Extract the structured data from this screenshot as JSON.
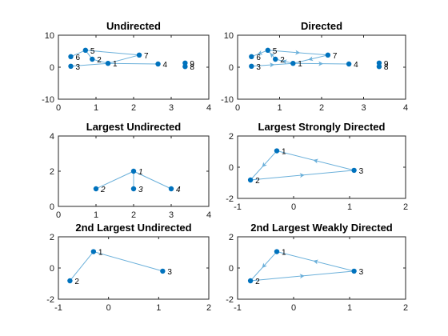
{
  "colors": {
    "node": "#0072BD",
    "edge": "#6BB0DA",
    "axis": "#262626",
    "text": "#000000"
  },
  "panels": [
    {
      "title": "Undirected",
      "directed": false,
      "xlim": [
        0,
        4
      ],
      "ylim": [
        -10,
        10
      ],
      "xticks": [
        0,
        1,
        2,
        3,
        4
      ],
      "yticks": [
        -10,
        0,
        10
      ],
      "nodes": [
        {
          "label": "1",
          "x": 1.32,
          "y": 1.2,
          "italic": false
        },
        {
          "label": "2",
          "x": 0.9,
          "y": 2.5,
          "italic": false
        },
        {
          "label": "3",
          "x": 0.33,
          "y": 0.3,
          "italic": false
        },
        {
          "label": "4",
          "x": 2.65,
          "y": 1.0,
          "italic": false
        },
        {
          "label": "5",
          "x": 0.72,
          "y": 5.3,
          "italic": false
        },
        {
          "label": "6",
          "x": 0.33,
          "y": 3.3,
          "italic": false
        },
        {
          "label": "7",
          "x": 2.15,
          "y": 3.8,
          "italic": false
        },
        {
          "label": "8",
          "x": 3.37,
          "y": 0.2,
          "italic": false
        },
        {
          "label": "9",
          "x": 3.37,
          "y": 1.3,
          "italic": false
        }
      ],
      "edges": [
        [
          5,
          7
        ],
        [
          7,
          1
        ],
        [
          1,
          2
        ],
        [
          2,
          5
        ],
        [
          1,
          4
        ],
        [
          1,
          3
        ],
        [
          5,
          6
        ]
      ]
    },
    {
      "title": "Directed",
      "directed": true,
      "xlim": [
        0,
        4
      ],
      "ylim": [
        -10,
        10
      ],
      "xticks": [
        0,
        1,
        2,
        3,
        4
      ],
      "yticks": [
        -10,
        0,
        10
      ],
      "nodes": [
        {
          "label": "1",
          "x": 1.32,
          "y": 1.2,
          "italic": false
        },
        {
          "label": "2",
          "x": 0.9,
          "y": 2.5,
          "italic": false
        },
        {
          "label": "3",
          "x": 0.33,
          "y": 0.3,
          "italic": false
        },
        {
          "label": "4",
          "x": 2.65,
          "y": 1.0,
          "italic": false
        },
        {
          "label": "5",
          "x": 0.72,
          "y": 5.3,
          "italic": false
        },
        {
          "label": "6",
          "x": 0.33,
          "y": 3.3,
          "italic": false
        },
        {
          "label": "7",
          "x": 2.15,
          "y": 3.8,
          "italic": false
        },
        {
          "label": "8",
          "x": 3.37,
          "y": 0.2,
          "italic": false
        },
        {
          "label": "9",
          "x": 3.37,
          "y": 1.3,
          "italic": false
        }
      ],
      "edges": [
        [
          5,
          7
        ],
        [
          7,
          1
        ],
        [
          1,
          2
        ],
        [
          2,
          5
        ],
        [
          1,
          4
        ],
        [
          3,
          1
        ],
        [
          5,
          6
        ],
        [
          9,
          8
        ]
      ]
    },
    {
      "title": "Largest Undirected",
      "directed": false,
      "xlim": [
        0,
        4
      ],
      "ylim": [
        0,
        4
      ],
      "xticks": [
        0,
        1,
        2,
        3,
        4
      ],
      "yticks": [
        0,
        2,
        4
      ],
      "nodes": [
        {
          "label": "1",
          "x": 2.0,
          "y": 2.0,
          "italic": true
        },
        {
          "label": "2",
          "x": 1.0,
          "y": 1.0,
          "italic": true
        },
        {
          "label": "3",
          "x": 2.0,
          "y": 1.0,
          "italic": true
        },
        {
          "label": "4",
          "x": 3.0,
          "y": 1.0,
          "italic": true
        }
      ],
      "edges": [
        [
          1,
          2
        ],
        [
          1,
          3
        ],
        [
          1,
          4
        ]
      ]
    },
    {
      "title": "Largest Strongly Directed",
      "directed": true,
      "xlim": [
        -1,
        2
      ],
      "ylim": [
        -2,
        2
      ],
      "xticks": [
        -1,
        0,
        1,
        2
      ],
      "yticks": [
        -2,
        0,
        2
      ],
      "nodes": [
        {
          "label": "1",
          "x": -0.3,
          "y": 1.05,
          "italic": false
        },
        {
          "label": "2",
          "x": -0.77,
          "y": -0.82,
          "italic": false
        },
        {
          "label": "3",
          "x": 1.08,
          "y": -0.2,
          "italic": false
        }
      ],
      "edges": [
        [
          1,
          2
        ],
        [
          2,
          3
        ],
        [
          3,
          1
        ]
      ]
    },
    {
      "title": "2nd Largest Undirected",
      "directed": false,
      "xlim": [
        -1,
        2
      ],
      "ylim": [
        -2,
        2
      ],
      "xticks": [
        -1,
        0,
        1,
        2
      ],
      "yticks": [
        -2,
        0,
        2
      ],
      "nodes": [
        {
          "label": "1",
          "x": -0.3,
          "y": 1.05,
          "italic": false
        },
        {
          "label": "2",
          "x": -0.77,
          "y": -0.82,
          "italic": false
        },
        {
          "label": "3",
          "x": 1.08,
          "y": -0.2,
          "italic": false
        }
      ],
      "edges": [
        [
          1,
          2
        ],
        [
          1,
          3
        ]
      ]
    },
    {
      "title": "2nd Largest Weakly Directed",
      "directed": true,
      "xlim": [
        -1,
        2
      ],
      "ylim": [
        -2,
        2
      ],
      "xticks": [
        -1,
        0,
        1,
        2
      ],
      "yticks": [
        -2,
        0,
        2
      ],
      "nodes": [
        {
          "label": "1",
          "x": -0.3,
          "y": 1.05,
          "italic": false
        },
        {
          "label": "2",
          "x": -0.77,
          "y": -0.82,
          "italic": false
        },
        {
          "label": "3",
          "x": 1.08,
          "y": -0.2,
          "italic": false
        }
      ],
      "edges": [
        [
          1,
          2
        ],
        [
          2,
          3
        ],
        [
          3,
          1
        ]
      ]
    }
  ]
}
